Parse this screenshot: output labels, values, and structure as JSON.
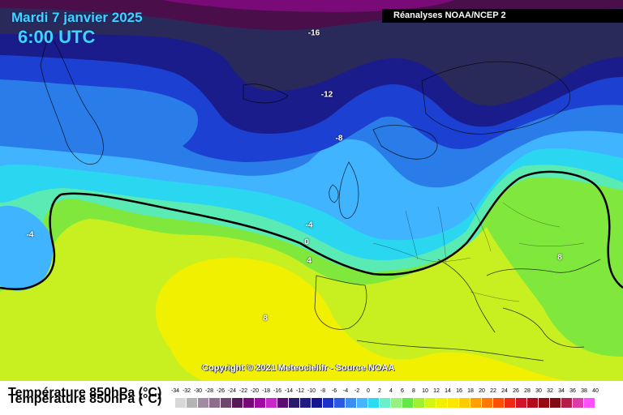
{
  "title": {
    "date": "Mardi 7 janvier 2025",
    "time": "6:00 UTC"
  },
  "source": "Réanalyses NOAA/NCEP 2",
  "copyright": "Copyright © 2021 Meteociel.fr - Source NOAA",
  "isotherm_labels": [
    "-16",
    "-12",
    "-8",
    "-4",
    "-4",
    "0",
    "4",
    "8",
    "8"
  ],
  "legend": {
    "title": "Température 850hPa (°C)",
    "tick_labels": [
      "-34",
      "-32",
      "-30",
      "-28",
      "-26",
      "-24",
      "-22",
      "-20",
      "-18",
      "-16",
      "-14",
      "-12",
      "-10",
      "-8",
      "-6",
      "-4",
      "-2",
      "0",
      "2",
      "4",
      "6",
      "8",
      "10",
      "12",
      "14",
      "16",
      "18",
      "20",
      "22",
      "24",
      "26",
      "28",
      "30",
      "32",
      "34",
      "36",
      "38",
      "40"
    ],
    "colors": [
      "#d8d8d8",
      "#b4b4b4",
      "#a08ca0",
      "#8c6e8c",
      "#6e466e",
      "#581858",
      "#780878",
      "#a00aa0",
      "#c828c8",
      "#5a0a70",
      "#2a1a6a",
      "#201c84",
      "#14148c",
      "#1a32c8",
      "#2a5ae0",
      "#3a8ef0",
      "#46b6ff",
      "#2adcf0",
      "#6af0c8",
      "#96f082",
      "#64e846",
      "#a0f032",
      "#d2f514",
      "#f0f000",
      "#ffe600",
      "#ffcc00",
      "#ffa000",
      "#ff7800",
      "#ff5000",
      "#f02814",
      "#d2142a",
      "#b40a1e",
      "#960a14",
      "#820a12",
      "#b41e46",
      "#dc3caa",
      "#ff50ff"
    ]
  }
}
